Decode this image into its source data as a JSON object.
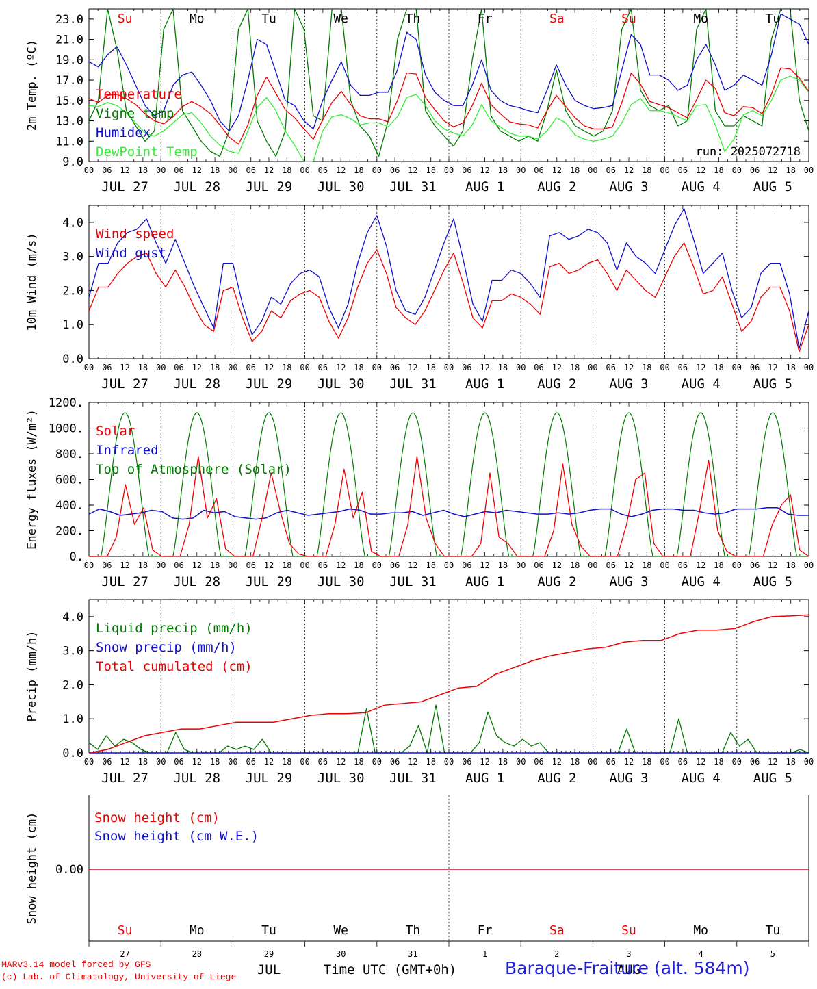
{
  "colors": {
    "red": "#ee0000",
    "blue": "#1010cc",
    "dgreen": "#007a00",
    "lgreen": "#33ee33",
    "black": "#000000"
  },
  "days": {
    "top": [
      {
        "label": "Su",
        "color": "red"
      },
      {
        "label": "Mo",
        "color": "black"
      },
      {
        "label": "Tu",
        "color": "black"
      },
      {
        "label": "We",
        "color": "black"
      },
      {
        "label": "Th",
        "color": "black"
      },
      {
        "label": "Fr",
        "color": "black"
      },
      {
        "label": "Sa",
        "color": "red"
      },
      {
        "label": "Su",
        "color": "red"
      },
      {
        "label": "Mo",
        "color": "black"
      },
      {
        "label": "Tu",
        "color": "black"
      }
    ],
    "dates": [
      "JUL 27",
      "JUL 28",
      "JUL 29",
      "JUL 30",
      "JUL 31",
      "AUG 1",
      "AUG 2",
      "AUG 3",
      "AUG 4",
      "AUG 5"
    ],
    "bottom_days": [
      {
        "label": "Su",
        "color": "red"
      },
      {
        "label": "Mo",
        "color": "black"
      },
      {
        "label": "Tu",
        "color": "black"
      },
      {
        "label": "We",
        "color": "black"
      },
      {
        "label": "Th",
        "color": "black"
      },
      {
        "label": "Fr",
        "color": "black"
      },
      {
        "label": "Sa",
        "color": "red"
      },
      {
        "label": "Su",
        "color": "red"
      },
      {
        "label": "Mo",
        "color": "black"
      },
      {
        "label": "Tu",
        "color": "black"
      }
    ],
    "day_numbers": [
      "27",
      "28",
      "29",
      "30",
      "31",
      "1",
      "2",
      "3",
      "4",
      "5"
    ],
    "hour_ticks": [
      "00",
      "06",
      "12",
      "18"
    ],
    "month_jul": "JUL",
    "month_aug": "AUG"
  },
  "footer": {
    "line1": "MARv3.14 model forced by GFS",
    "line2": "(c) Lab. of Climatology, University of Liege",
    "axis_title": "Time UTC (GMT+0h)",
    "station": "Baraque-Fraiture (alt. 584m)"
  },
  "chart_data": [
    {
      "type": "line",
      "ylabel": "2m Temp. (ºC)",
      "ylim": [
        9,
        24
      ],
      "yticks": [
        "9.0",
        "11.0",
        "13.0",
        "15.0",
        "17.0",
        "19.0",
        "21.0",
        "23.0"
      ],
      "annotation": "run: 2025072718",
      "x_unit": "hours since 2025-07-27 00 UTC (3h steps)",
      "series": [
        {
          "name": "Temperature",
          "color": "red",
          "values": [
            15.2,
            14.8,
            15.5,
            15.6,
            15.2,
            14.6,
            13.7,
            13.0,
            12.7,
            13.4,
            14.4,
            14.9,
            14.4,
            13.7,
            12.6,
            11.4,
            10.7,
            12.6,
            15.5,
            17.3,
            15.7,
            14.1,
            13.3,
            12.2,
            11.2,
            13.1,
            14.8,
            15.9,
            14.6,
            13.5,
            13.2,
            13.2,
            12.9,
            15.0,
            17.7,
            17.6,
            15.3,
            14.1,
            13.0,
            12.4,
            12.8,
            14.5,
            16.7,
            14.6,
            13.7,
            12.9,
            12.7,
            12.6,
            12.3,
            14.0,
            15.5,
            14.4,
            13.3,
            12.5,
            12.2,
            12.2,
            12.4,
            14.8,
            17.7,
            16.6,
            14.9,
            14.6,
            14.3,
            13.8,
            13.3,
            15.1,
            17.0,
            16.2,
            13.8,
            13.5,
            14.4,
            14.3,
            13.7,
            15.6,
            18.2,
            18.1,
            17.2,
            15.9
          ]
        },
        {
          "name": "Vigne temp",
          "color": "dgreen",
          "values": [
            13.0,
            15.0,
            24.0,
            20.0,
            14.0,
            12.5,
            11.0,
            12.0,
            22.0,
            24.0,
            14.0,
            12.5,
            11.0,
            10.0,
            9.5,
            12.0,
            22.0,
            24.0,
            13.0,
            11.0,
            9.5,
            12.0,
            24.0,
            22.0,
            13.5,
            13.0,
            24.0,
            24.0,
            15.0,
            12.5,
            11.5,
            9.5,
            13.0,
            21.0,
            24.0,
            24.0,
            14.0,
            12.5,
            11.5,
            10.5,
            12.0,
            19.0,
            24.0,
            13.5,
            12.0,
            11.5,
            11.0,
            11.5,
            11.0,
            14.0,
            18.0,
            14.0,
            12.5,
            12.0,
            11.5,
            12.0,
            14.0,
            22.0,
            24.0,
            16.0,
            14.5,
            14.0,
            14.5,
            12.5,
            13.0,
            22.0,
            24.0,
            14.0,
            12.5,
            12.5,
            13.5,
            13.0,
            12.5,
            21.0,
            24.0,
            24.0,
            15.0,
            12.0
          ]
        },
        {
          "name": "Humidex",
          "color": "blue",
          "values": [
            18.8,
            18.3,
            19.5,
            20.3,
            18.5,
            16.5,
            14.5,
            13.5,
            14.0,
            16.5,
            17.5,
            17.8,
            16.5,
            15.0,
            13.0,
            12.0,
            13.5,
            17.0,
            21.0,
            20.5,
            17.8,
            15.0,
            14.5,
            13.0,
            12.2,
            15.0,
            17.0,
            18.8,
            16.5,
            15.5,
            15.5,
            15.8,
            15.8,
            18.0,
            21.7,
            21.0,
            17.5,
            15.8,
            15.0,
            14.5,
            14.5,
            16.5,
            19.0,
            16.0,
            15.0,
            14.5,
            14.3,
            14.0,
            13.8,
            16.0,
            18.5,
            16.5,
            15.0,
            14.5,
            14.2,
            14.3,
            14.5,
            18.0,
            21.5,
            20.5,
            17.5,
            17.5,
            17.0,
            16.0,
            16.5,
            19.0,
            20.5,
            18.5,
            16.0,
            16.5,
            17.5,
            17.0,
            16.5,
            19.5,
            23.5,
            23.0,
            22.5,
            20.5
          ]
        },
        {
          "name": "DewPoint Temp",
          "color": "lgreen",
          "values": [
            14.5,
            14.4,
            14.8,
            14.5,
            13.8,
            12.8,
            11.8,
            11.5,
            12.0,
            12.8,
            13.6,
            13.8,
            12.8,
            11.5,
            10.6,
            10.0,
            9.8,
            12.0,
            14.3,
            15.3,
            14.0,
            12.0,
            10.6,
            9.0,
            9.0,
            12.0,
            13.4,
            13.6,
            13.2,
            12.6,
            12.8,
            12.8,
            12.4,
            13.4,
            15.3,
            15.6,
            14.5,
            13.0,
            12.2,
            11.8,
            11.5,
            12.6,
            14.6,
            13.0,
            12.4,
            11.8,
            11.5,
            11.5,
            11.2,
            12.0,
            13.3,
            12.8,
            11.6,
            11.2,
            11.0,
            11.2,
            11.5,
            12.8,
            14.6,
            15.2,
            14.0,
            14.0,
            13.8,
            13.4,
            13.0,
            14.5,
            14.6,
            12.6,
            10.0,
            11.2,
            13.6,
            14.0,
            13.5,
            15.0,
            17.0,
            17.4,
            17.0,
            15.8
          ]
        }
      ]
    },
    {
      "type": "line",
      "ylabel": "10m Wind (m/s)",
      "ylim": [
        0,
        4.5
      ],
      "yticks": [
        "0.0",
        "1.0",
        "2.0",
        "3.0",
        "4.0"
      ],
      "series": [
        {
          "name": "Wind speed",
          "color": "red",
          "values": [
            1.4,
            2.1,
            2.1,
            2.5,
            2.8,
            3.0,
            3.1,
            2.5,
            2.1,
            2.6,
            2.1,
            1.5,
            1.0,
            0.8,
            2.0,
            2.1,
            1.2,
            0.5,
            0.8,
            1.4,
            1.2,
            1.7,
            1.9,
            2.0,
            1.8,
            1.1,
            0.6,
            1.2,
            2.1,
            2.8,
            3.2,
            2.5,
            1.5,
            1.2,
            1.0,
            1.4,
            2.0,
            2.6,
            3.1,
            2.2,
            1.2,
            0.9,
            1.7,
            1.7,
            1.9,
            1.8,
            1.6,
            1.3,
            2.7,
            2.8,
            2.5,
            2.6,
            2.8,
            2.9,
            2.5,
            2.0,
            2.6,
            2.3,
            2.0,
            1.8,
            2.4,
            3.0,
            3.4,
            2.7,
            1.9,
            2.0,
            2.4,
            1.6,
            0.8,
            1.1,
            1.8,
            2.1,
            2.1,
            1.4,
            0.2,
            1.0
          ]
        },
        {
          "name": "Wind gust",
          "color": "blue",
          "values": [
            1.8,
            2.8,
            2.8,
            3.4,
            3.7,
            3.8,
            4.1,
            3.4,
            2.8,
            3.5,
            2.8,
            2.1,
            1.5,
            0.9,
            2.8,
            2.8,
            1.6,
            0.7,
            1.1,
            1.8,
            1.6,
            2.2,
            2.5,
            2.6,
            2.4,
            1.5,
            0.9,
            1.6,
            2.8,
            3.7,
            4.2,
            3.3,
            2.0,
            1.4,
            1.3,
            1.8,
            2.6,
            3.4,
            4.1,
            2.9,
            1.6,
            1.1,
            2.3,
            2.3,
            2.6,
            2.5,
            2.2,
            1.8,
            3.6,
            3.7,
            3.5,
            3.6,
            3.8,
            3.7,
            3.4,
            2.6,
            3.4,
            3.0,
            2.8,
            2.5,
            3.2,
            3.9,
            4.4,
            3.5,
            2.5,
            2.8,
            3.1,
            2.0,
            1.2,
            1.5,
            2.5,
            2.8,
            2.8,
            1.9,
            0.3,
            1.4
          ]
        }
      ]
    },
    {
      "type": "line",
      "ylabel": "Energy fluxes (W/m²)",
      "ylim": [
        0,
        1200
      ],
      "yticks": [
        "0.",
        "200.",
        "400.",
        "600.",
        "800.",
        "1000.",
        "1200."
      ],
      "series": [
        {
          "name": "Solar",
          "color": "red",
          "values": [
            0,
            0,
            0,
            150,
            560,
            250,
            380,
            50,
            0,
            0,
            0,
            250,
            780,
            300,
            450,
            60,
            0,
            0,
            0,
            300,
            650,
            350,
            100,
            20,
            0,
            0,
            0,
            250,
            680,
            300,
            500,
            40,
            0,
            0,
            0,
            250,
            780,
            300,
            100,
            0,
            0,
            0,
            0,
            100,
            650,
            150,
            100,
            0,
            0,
            0,
            0,
            200,
            720,
            250,
            80,
            0,
            0,
            0,
            0,
            250,
            600,
            650,
            100,
            0,
            0,
            0,
            0,
            350,
            750,
            200,
            40,
            0,
            0,
            0,
            0,
            250,
            400,
            480,
            50,
            0
          ]
        },
        {
          "name": "Infrared",
          "color": "blue",
          "values": [
            330,
            370,
            350,
            320,
            330,
            340,
            360,
            350,
            300,
            290,
            300,
            360,
            340,
            350,
            310,
            300,
            290,
            300,
            340,
            360,
            340,
            320,
            330,
            340,
            350,
            370,
            360,
            330,
            330,
            340,
            340,
            350,
            320,
            340,
            360,
            330,
            310,
            330,
            350,
            340,
            360,
            350,
            340,
            330,
            330,
            340,
            330,
            340,
            360,
            370,
            370,
            330,
            310,
            330,
            360,
            370,
            370,
            360,
            360,
            340,
            330,
            340,
            370,
            370,
            370,
            380,
            380,
            330,
            320,
            320
          ]
        },
        {
          "name": "Top of Atmosphere (Solar)",
          "color": "dgreen",
          "values": [
            0,
            0,
            0,
            600,
            1120,
            600,
            0,
            0
          ]
        }
      ]
    },
    {
      "type": "line",
      "ylabel": "Precip (mm/h)",
      "ylim": [
        0,
        4.5
      ],
      "yticks": [
        "0.0",
        "1.0",
        "2.0",
        "3.0",
        "4.0"
      ],
      "series": [
        {
          "name": "Liquid precip (mm/h)",
          "color": "dgreen",
          "values": [
            0.3,
            0.1,
            0.5,
            0.2,
            0.4,
            0.3,
            0.1,
            0,
            0,
            0,
            0.6,
            0.1,
            0,
            0,
            0,
            0,
            0.2,
            0.1,
            0.2,
            0.1,
            0.4,
            0,
            0,
            0,
            0,
            0,
            0,
            0,
            0,
            0,
            0,
            0,
            1.3,
            0,
            0,
            0,
            0,
            0.2,
            0.8,
            0,
            1.4,
            0,
            0,
            0,
            0,
            0.3,
            1.2,
            0.5,
            0.3,
            0.2,
            0.4,
            0.2,
            0.3,
            0,
            0,
            0,
            0,
            0,
            0,
            0,
            0,
            0,
            0.7,
            0,
            0,
            0,
            0,
            0,
            1.0,
            0,
            0,
            0,
            0,
            0,
            0.6,
            0.2,
            0.4,
            0,
            0,
            0,
            0,
            0,
            0.1,
            0
          ]
        },
        {
          "name": "Snow precip (mm/h)",
          "color": "blue",
          "values": [
            0,
            0,
            0,
            0,
            0,
            0,
            0,
            0,
            0,
            0
          ]
        },
        {
          "name": "Total cumulated (cm)",
          "color": "red",
          "values": [
            0.0,
            0.1,
            0.3,
            0.5,
            0.6,
            0.7,
            0.7,
            0.8,
            0.9,
            0.9,
            0.9,
            1.0,
            1.1,
            1.15,
            1.15,
            1.18,
            1.4,
            1.45,
            1.5,
            1.7,
            1.9,
            1.95,
            2.3,
            2.5,
            2.7,
            2.85,
            2.95,
            3.05,
            3.1,
            3.25,
            3.3,
            3.3,
            3.5,
            3.6,
            3.6,
            3.65,
            3.85,
            4.0,
            4.02,
            4.05
          ]
        }
      ]
    },
    {
      "type": "line",
      "ylabel": "Snow height (cm)",
      "yticks": [
        "0.00"
      ],
      "series": [
        {
          "name": "Snow height (cm)",
          "color": "red",
          "values": [
            0,
            0
          ]
        },
        {
          "name": "Snow height (cm W.E.)",
          "color": "blue",
          "values": [
            0,
            0
          ]
        }
      ]
    }
  ]
}
